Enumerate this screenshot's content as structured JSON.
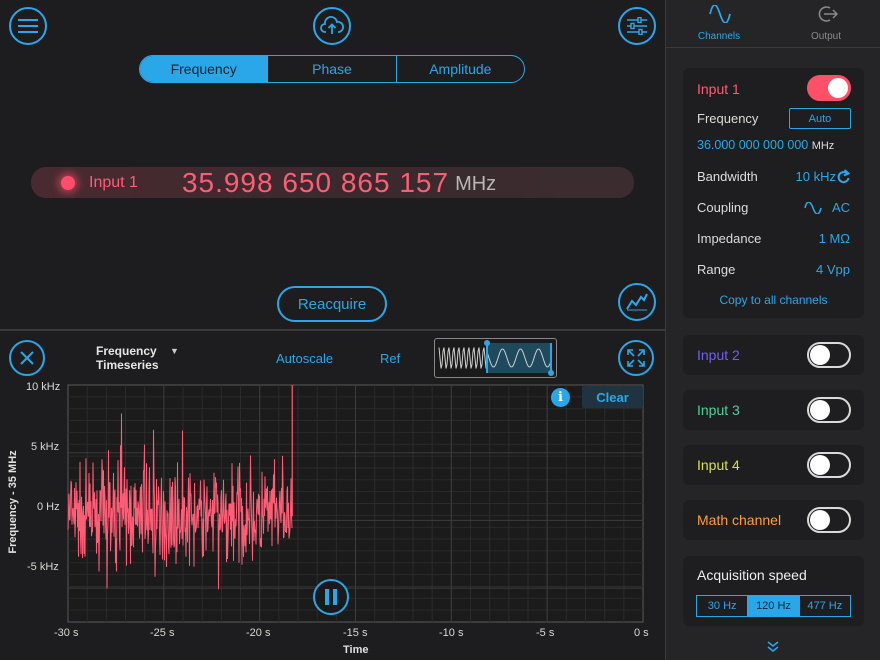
{
  "top": {
    "tabs": [
      {
        "label": "Frequency",
        "active": true
      },
      {
        "label": "Phase",
        "active": false
      },
      {
        "label": "Amplitude",
        "active": false
      }
    ]
  },
  "readout": {
    "channel": "Input 1",
    "value": "35.998 650 865 157",
    "unit": "MHz"
  },
  "reacquire_label": "Reacquire",
  "plot_controls": {
    "type_line1": "Frequency",
    "type_line2": "Timeseries",
    "autoscale": "Autoscale",
    "ref": "Ref",
    "clear": "Clear",
    "info": "i"
  },
  "chart_data": {
    "type": "line",
    "xlabel": "Time",
    "ylabel": "Frequency - 35 MHz",
    "x_ticks": [
      "-30 s",
      "-25 s",
      "-20 s",
      "-15 s",
      "-10 s",
      "-5 s",
      "0 s"
    ],
    "y_ticks": [
      "10 kHz",
      "5 kHz",
      "0 Hz",
      "-5 kHz"
    ],
    "xlim": [
      -30,
      0
    ],
    "ylim": [
      -7.5,
      10
    ],
    "series": [
      {
        "color": "#ff5c76",
        "x_range": [
          -30,
          -18.3
        ],
        "y_center_khz": 0.3,
        "y_noise_khz": [
          -7,
          8
        ]
      }
    ],
    "grid": true
  },
  "sidebar": {
    "tabs": [
      {
        "label": "Channels",
        "icon": "sine-wave-icon",
        "active": true
      },
      {
        "label": "Output",
        "icon": "output-arrow-icon",
        "active": false
      }
    ],
    "input1": {
      "title": "Input 1",
      "enabled": true,
      "frequency_label": "Frequency",
      "frequency_mode": "Auto",
      "frequency_value": "36.000 000 000 000",
      "frequency_unit": "MHz",
      "bandwidth_label": "Bandwidth",
      "bandwidth_value": "10 kHz",
      "coupling_label": "Coupling",
      "coupling_value": "AC",
      "impedance_label": "Impedance",
      "impedance_value": "1 MΩ",
      "range_label": "Range",
      "range_value": "4 Vpp",
      "copy_label": "Copy to all channels"
    },
    "channels": [
      {
        "title": "Input 2",
        "color": "#6f5ff0",
        "enabled": false
      },
      {
        "title": "Input 3",
        "color": "#48d39a",
        "enabled": false
      },
      {
        "title": "Input 4",
        "color": "#d6e04a",
        "enabled": false
      },
      {
        "title": "Math channel",
        "color": "#ff9d3a",
        "enabled": false
      }
    ],
    "acquisition": {
      "title": "Acquisition speed",
      "options": [
        {
          "label": "30 Hz",
          "active": false
        },
        {
          "label": "120 Hz",
          "active": true
        },
        {
          "label": "477 Hz",
          "active": false
        }
      ]
    }
  },
  "colors": {
    "accent": "#2aa7e8",
    "input1": "#ff5c76"
  }
}
